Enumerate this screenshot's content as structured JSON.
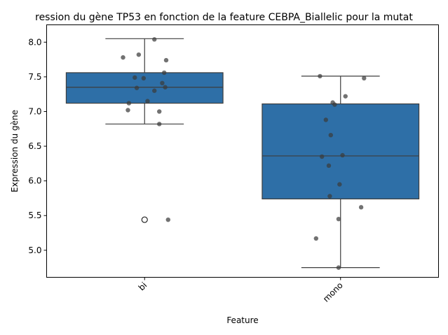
{
  "chart_data": {
    "type": "box",
    "title": "ression du gène TP53 en fonction de la feature CEBPA_Biallelic pour la mutat",
    "xlabel": "Feature",
    "ylabel": "Expression du gène",
    "categories": [
      "bi",
      "mono"
    ],
    "ylim": [
      4.61,
      8.25
    ],
    "yticks": [
      5.0,
      5.5,
      6.0,
      6.5,
      7.0,
      7.5,
      8.0
    ],
    "ytick_labels": [
      "5.0",
      "5.5",
      "6.0",
      "6.5",
      "7.0",
      "7.5",
      "8.0"
    ],
    "box_color": "#2e6fa7",
    "point_color": "#3c3c3c",
    "grid": false,
    "boxes": [
      {
        "category": "bi",
        "q1": 7.12,
        "median": 7.35,
        "q3": 7.56,
        "whisker_low": 6.82,
        "whisker_high": 8.05,
        "outliers": [
          5.44
        ]
      },
      {
        "category": "mono",
        "q1": 5.74,
        "median": 6.36,
        "q3": 7.11,
        "whisker_low": 4.75,
        "whisker_high": 7.51,
        "outliers": []
      }
    ],
    "points": [
      {
        "category": "bi",
        "jitter": 0.05,
        "y": 8.04
      },
      {
        "category": "bi",
        "jitter": -0.11,
        "y": 7.78
      },
      {
        "category": "bi",
        "jitter": -0.03,
        "y": 7.82
      },
      {
        "category": "bi",
        "jitter": 0.11,
        "y": 7.74
      },
      {
        "category": "bi",
        "jitter": 0.1,
        "y": 7.56
      },
      {
        "category": "bi",
        "jitter": -0.05,
        "y": 7.49
      },
      {
        "category": "bi",
        "jitter": -0.005,
        "y": 7.48
      },
      {
        "category": "bi",
        "jitter": 0.09,
        "y": 7.41
      },
      {
        "category": "bi",
        "jitter": -0.04,
        "y": 7.34
      },
      {
        "category": "bi",
        "jitter": 0.105,
        "y": 7.35
      },
      {
        "category": "bi",
        "jitter": 0.05,
        "y": 7.3
      },
      {
        "category": "bi",
        "jitter": 0.015,
        "y": 7.15
      },
      {
        "category": "bi",
        "jitter": -0.08,
        "y": 7.12
      },
      {
        "category": "bi",
        "jitter": -0.085,
        "y": 7.02
      },
      {
        "category": "bi",
        "jitter": 0.075,
        "y": 7.0
      },
      {
        "category": "bi",
        "jitter": 0.075,
        "y": 6.82
      },
      {
        "category": "bi",
        "jitter": 0.12,
        "y": 5.44
      },
      {
        "category": "mono",
        "jitter": -0.105,
        "y": 7.51
      },
      {
        "category": "mono",
        "jitter": 0.12,
        "y": 7.48
      },
      {
        "category": "mono",
        "jitter": 0.025,
        "y": 7.22
      },
      {
        "category": "mono",
        "jitter": -0.04,
        "y": 7.13
      },
      {
        "category": "mono",
        "jitter": -0.03,
        "y": 7.1
      },
      {
        "category": "mono",
        "jitter": -0.075,
        "y": 6.88
      },
      {
        "category": "mono",
        "jitter": -0.05,
        "y": 6.66
      },
      {
        "category": "mono",
        "jitter": 0.01,
        "y": 6.37
      },
      {
        "category": "mono",
        "jitter": -0.095,
        "y": 6.35
      },
      {
        "category": "mono",
        "jitter": -0.06,
        "y": 6.22
      },
      {
        "category": "mono",
        "jitter": -0.005,
        "y": 5.95
      },
      {
        "category": "mono",
        "jitter": -0.055,
        "y": 5.78
      },
      {
        "category": "mono",
        "jitter": 0.105,
        "y": 5.62
      },
      {
        "category": "mono",
        "jitter": -0.01,
        "y": 5.45
      },
      {
        "category": "mono",
        "jitter": -0.125,
        "y": 5.17
      },
      {
        "category": "mono",
        "jitter": -0.01,
        "y": 4.75
      }
    ]
  }
}
